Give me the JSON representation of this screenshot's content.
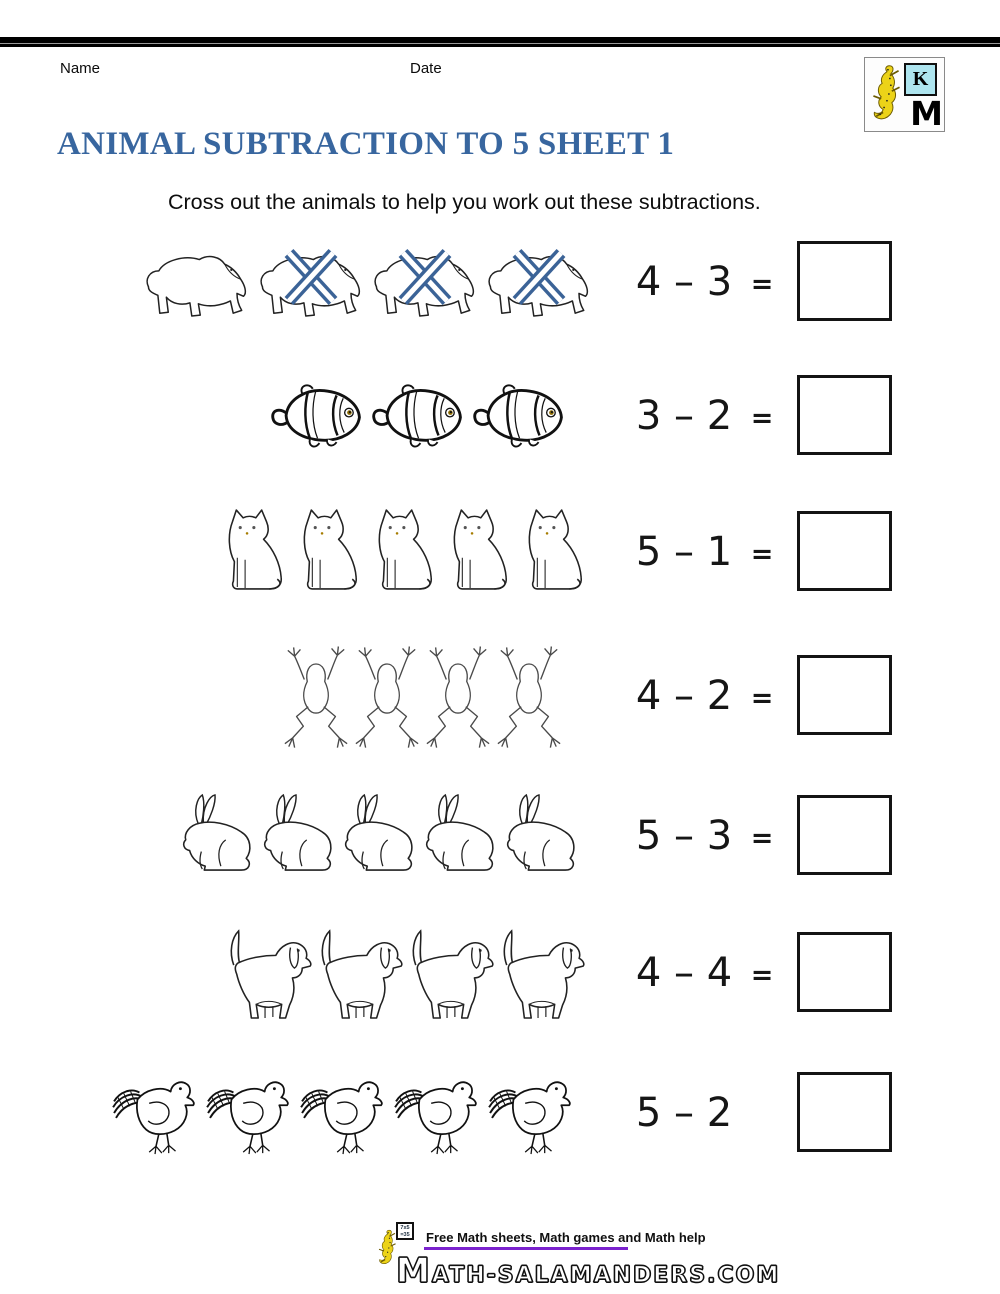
{
  "page": {
    "name_label": "Name",
    "date_label": "Date"
  },
  "logo": {
    "k_letter": "K",
    "m_letter": "M"
  },
  "title": "ANIMAL SUBTRACTION TO 5 SHEET 1",
  "instruction": "Cross out the animals to help you work out these subtractions.",
  "colors": {
    "title_blue": "#38669f",
    "cross_blue": "#3b6397",
    "footer_purple": "#7b22ce",
    "logo_cyan": "#aee5ef",
    "salamander_yellow": "#ecd318"
  },
  "rows": [
    {
      "animal": "polar-bear",
      "count": 4,
      "crossed": [
        1,
        2,
        3
      ],
      "expression": "4 – 3",
      "equals": "=",
      "answer": ""
    },
    {
      "animal": "clownfish",
      "count": 3,
      "crossed": [],
      "expression": "3 – 2",
      "equals": "=",
      "answer": ""
    },
    {
      "animal": "cat",
      "count": 5,
      "crossed": [],
      "expression": "5 – 1",
      "equals": "=",
      "answer": ""
    },
    {
      "animal": "frog",
      "count": 4,
      "crossed": [],
      "expression": "4 – 2",
      "equals": "=",
      "answer": ""
    },
    {
      "animal": "rabbit",
      "count": 5,
      "crossed": [],
      "expression": "5 – 3",
      "equals": "=",
      "answer": ""
    },
    {
      "animal": "dog",
      "count": 4,
      "crossed": [],
      "expression": "4 – 4",
      "equals": "=",
      "answer": ""
    },
    {
      "animal": "bird",
      "count": 5,
      "crossed": [],
      "expression": "5 – 2",
      "equals": "",
      "answer": ""
    }
  ],
  "footer": {
    "tagline": "Free Math sheets, Math games and Math help",
    "brand": "Math-Salamanders.com",
    "board_line1": "7x5",
    "board_line2": "=35"
  }
}
